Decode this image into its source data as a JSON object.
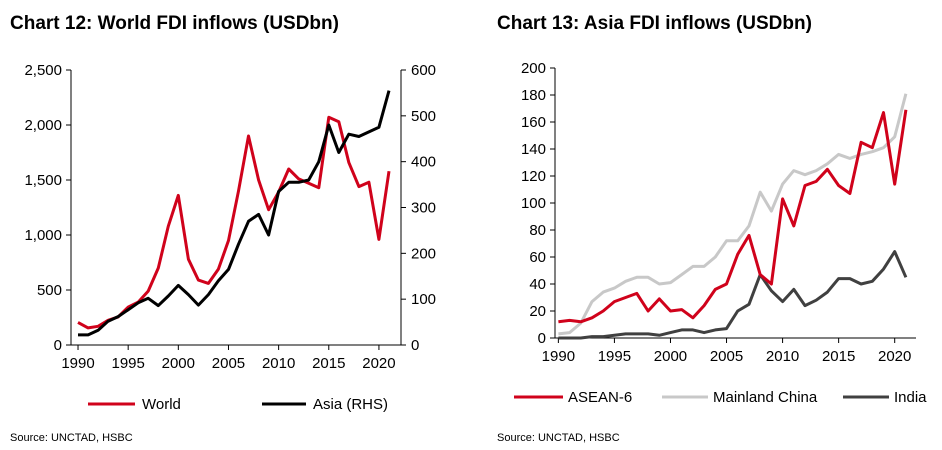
{
  "chart_data": [
    {
      "type": "line",
      "title": "Chart 12: World FDI inflows (USDbn)",
      "source": "Source: UNCTAD, HSBC",
      "x": [
        1990,
        1991,
        1992,
        1993,
        1994,
        1995,
        1996,
        1997,
        1998,
        1999,
        2000,
        2001,
        2002,
        2003,
        2004,
        2005,
        2006,
        2007,
        2008,
        2009,
        2010,
        2011,
        2012,
        2013,
        2014,
        2015,
        2016,
        2017,
        2018,
        2019,
        2020,
        2021
      ],
      "xticks": [
        "1990",
        "1995",
        "2000",
        "2005",
        "2010",
        "2015",
        "2020"
      ],
      "xlim": [
        1989.3,
        2022.2
      ],
      "yticks_left": [
        "0",
        "500",
        "1,000",
        "1,500",
        "2,000",
        "2,500"
      ],
      "ylim_left": [
        0,
        2500
      ],
      "yticks_right": [
        "0",
        "100",
        "200",
        "300",
        "400",
        "500",
        "600"
      ],
      "ylim_right": [
        0,
        600
      ],
      "legend_position": "bottom",
      "series": [
        {
          "name": "World",
          "axis": "left",
          "color": "#d0021b",
          "values": [
            205,
            155,
            170,
            225,
            255,
            345,
            390,
            490,
            700,
            1080,
            1360,
            780,
            590,
            560,
            690,
            950,
            1400,
            1900,
            1500,
            1230,
            1390,
            1600,
            1510,
            1470,
            1430,
            2070,
            2030,
            1660,
            1440,
            1480,
            960,
            1580
          ]
        },
        {
          "name": "Asia (RHS)",
          "axis": "right",
          "color": "#000000",
          "values": [
            22,
            22,
            32,
            52,
            62,
            77,
            92,
            102,
            86,
            107,
            130,
            110,
            87,
            110,
            140,
            165,
            220,
            270,
            285,
            240,
            335,
            355,
            355,
            360,
            400,
            480,
            420,
            460,
            455,
            465,
            475,
            555
          ]
        }
      ]
    },
    {
      "type": "line",
      "title": "Chart 13: Asia FDI inflows (USDbn)",
      "source": "Source: UNCTAD, HSBC",
      "x": [
        1990,
        1991,
        1992,
        1993,
        1994,
        1995,
        1996,
        1997,
        1998,
        1999,
        2000,
        2001,
        2002,
        2003,
        2004,
        2005,
        2006,
        2007,
        2008,
        2009,
        2010,
        2011,
        2012,
        2013,
        2014,
        2015,
        2016,
        2017,
        2018,
        2019,
        2020,
        2021
      ],
      "xticks": [
        "1990",
        "1995",
        "2000",
        "2005",
        "2010",
        "2015",
        "2020"
      ],
      "xlim": [
        1989.7,
        2021.9
      ],
      "yticks": [
        "0",
        "20",
        "40",
        "60",
        "80",
        "100",
        "120",
        "140",
        "160",
        "180",
        "200"
      ],
      "ylim": [
        0,
        200
      ],
      "legend_position": "bottom",
      "series": [
        {
          "name": "ASEAN-6",
          "color": "#d0021b",
          "values": [
            12,
            13,
            12,
            15,
            20,
            27,
            30,
            33,
            20,
            29,
            20,
            21,
            15,
            24,
            36,
            40,
            62,
            76,
            47,
            40,
            103,
            83,
            113,
            116,
            125,
            113,
            107,
            145,
            141,
            167,
            114,
            169
          ]
        },
        {
          "name": "Mainland China",
          "color": "#c8c8c8",
          "values": [
            3,
            4,
            11,
            27,
            34,
            37,
            42,
            45,
            45,
            40,
            41,
            47,
            53,
            53,
            60,
            72,
            72,
            83,
            108,
            94,
            114,
            124,
            121,
            124,
            129,
            136,
            133,
            136,
            138,
            141,
            149,
            181
          ]
        },
        {
          "name": "India",
          "color": "#404040",
          "values": [
            0,
            0,
            0,
            1,
            1,
            2,
            3,
            3,
            3,
            2,
            4,
            6,
            6,
            4,
            6,
            7,
            20,
            25,
            47,
            35,
            27,
            36,
            24,
            28,
            34,
            44,
            44,
            40,
            42,
            51,
            64,
            45
          ]
        }
      ]
    }
  ]
}
